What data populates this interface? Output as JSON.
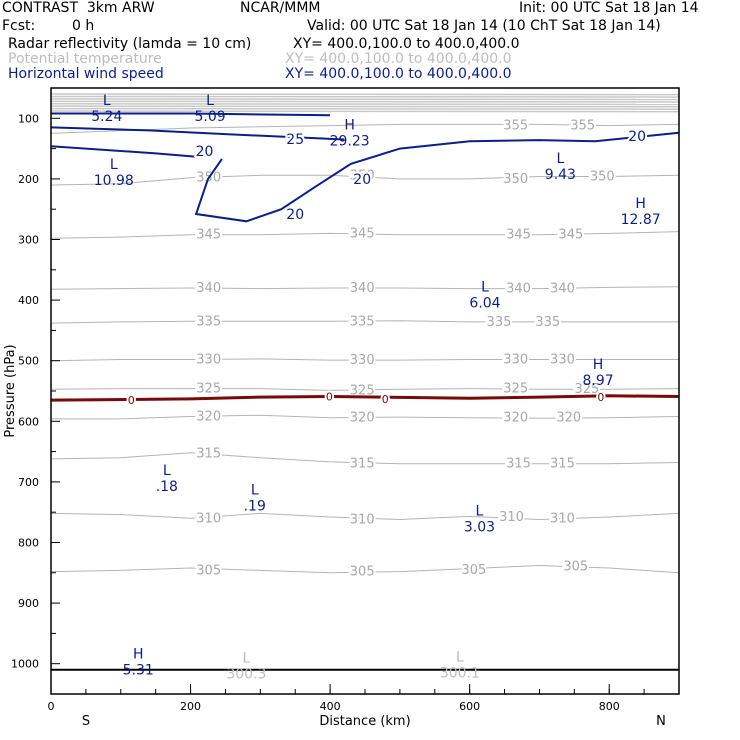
{
  "header": {
    "model": "CONTRAST  3km ARW",
    "institution": "NCAR/MMM",
    "init": "Init: 00 UTC Sat 18 Jan 14",
    "fcst_label": "Fcst:",
    "fcst_value": "0 h",
    "valid": "Valid: 00 UTC Sat 18 Jan 14 (10 ChT Sat 18 Jan 14)",
    "fields": [
      {
        "name": "Radar reflectivity (lamda = 10 cm)",
        "xy": "XY= 400.0,100.0 to 400.0,400.0",
        "color": "#000000"
      },
      {
        "name": "Potential temperature",
        "xy": "XY= 400.0,100.0 to 400.0,400.0",
        "color": "#bdbdbd"
      },
      {
        "name": "Horizontal wind speed",
        "xy": "XY= 400.0,100.0 to 400.0,400.0",
        "color": "#0a1f8f"
      }
    ]
  },
  "chart_data": {
    "type": "contour-cross-section",
    "xlabel": "Distance (km)",
    "ylabel": "Pressure (hPa)",
    "xlim": [
      0,
      900
    ],
    "ylim": [
      1050,
      50
    ],
    "x_ticks": [
      0,
      200,
      400,
      600,
      800
    ],
    "x_tick_labels": [
      "0",
      "200",
      "400",
      "600",
      "800"
    ],
    "y_ticks": [
      100,
      200,
      300,
      400,
      500,
      600,
      700,
      800,
      900,
      1000
    ],
    "y_tick_labels": [
      "100",
      "200",
      "300",
      "400",
      "500",
      "600",
      "700",
      "800",
      "900",
      "1000"
    ],
    "end_labels": {
      "left": "S",
      "right": "N"
    },
    "colors": {
      "theta": "#b4b4b4",
      "wind": "#0a1f8f",
      "freezing": "#7a0a0a",
      "ground": "#000000"
    },
    "ground_pressure": 1010,
    "theta_lines": [
      {
        "value": 305,
        "points": [
          [
            0,
            848
          ],
          [
            100,
            846
          ],
          [
            200,
            842
          ],
          [
            300,
            846
          ],
          [
            400,
            850
          ],
          [
            500,
            848
          ],
          [
            600,
            843
          ],
          [
            700,
            838
          ],
          [
            800,
            842
          ],
          [
            900,
            850
          ]
        ]
      },
      {
        "value": 310,
        "points": [
          [
            0,
            752
          ],
          [
            100,
            754
          ],
          [
            200,
            760
          ],
          [
            300,
            752
          ],
          [
            400,
            758
          ],
          [
            500,
            762
          ],
          [
            600,
            757
          ],
          [
            700,
            762
          ],
          [
            800,
            758
          ],
          [
            900,
            752
          ]
        ]
      },
      {
        "value": 315,
        "points": [
          [
            0,
            662
          ],
          [
            100,
            660
          ],
          [
            200,
            652
          ],
          [
            300,
            660
          ],
          [
            400,
            667
          ],
          [
            500,
            670
          ],
          [
            600,
            670
          ],
          [
            700,
            670
          ],
          [
            800,
            670
          ],
          [
            900,
            668
          ]
        ]
      },
      {
        "value": 320,
        "points": [
          [
            0,
            596
          ],
          [
            100,
            596
          ],
          [
            200,
            592
          ],
          [
            300,
            590
          ],
          [
            400,
            594
          ],
          [
            500,
            593
          ],
          [
            600,
            594
          ],
          [
            700,
            595
          ],
          [
            800,
            594
          ],
          [
            900,
            592
          ]
        ]
      },
      {
        "value": 325,
        "points": [
          [
            0,
            547
          ],
          [
            100,
            546
          ],
          [
            200,
            546
          ],
          [
            300,
            546
          ],
          [
            400,
            549
          ],
          [
            500,
            547
          ],
          [
            600,
            546
          ],
          [
            700,
            547
          ],
          [
            800,
            547
          ],
          [
            900,
            546
          ]
        ]
      },
      {
        "value": 330,
        "points": [
          [
            0,
            500
          ],
          [
            100,
            498
          ],
          [
            200,
            498
          ],
          [
            300,
            497
          ],
          [
            400,
            499
          ],
          [
            500,
            499
          ],
          [
            600,
            498
          ],
          [
            700,
            498
          ],
          [
            800,
            498
          ],
          [
            900,
            498
          ]
        ]
      },
      {
        "value": 335,
        "points": [
          [
            0,
            438
          ],
          [
            100,
            436
          ],
          [
            200,
            435
          ],
          [
            300,
            435
          ],
          [
            400,
            435
          ],
          [
            500,
            434
          ],
          [
            600,
            436
          ],
          [
            700,
            436
          ],
          [
            800,
            436
          ],
          [
            900,
            436
          ]
        ]
      },
      {
        "value": 340,
        "points": [
          [
            0,
            382
          ],
          [
            100,
            381
          ],
          [
            200,
            380
          ],
          [
            300,
            381
          ],
          [
            400,
            380
          ],
          [
            500,
            380
          ],
          [
            600,
            381
          ],
          [
            700,
            381
          ],
          [
            800,
            379
          ],
          [
            900,
            378
          ]
        ]
      },
      {
        "value": 345,
        "points": [
          [
            0,
            298
          ],
          [
            100,
            296
          ],
          [
            200,
            292
          ],
          [
            300,
            292
          ],
          [
            400,
            290
          ],
          [
            500,
            292
          ],
          [
            600,
            292
          ],
          [
            700,
            292
          ],
          [
            800,
            290
          ],
          [
            900,
            287
          ]
        ]
      },
      {
        "value": 350,
        "points": [
          [
            0,
            210
          ],
          [
            100,
            208
          ],
          [
            200,
            198
          ],
          [
            300,
            194
          ],
          [
            400,
            194
          ],
          [
            500,
            200
          ],
          [
            600,
            200
          ],
          [
            700,
            196
          ],
          [
            800,
            196
          ],
          [
            900,
            194
          ]
        ]
      },
      {
        "value": 355,
        "points": [
          [
            0,
            125
          ],
          [
            200,
            116
          ],
          [
            400,
            112
          ],
          [
            500,
            110
          ],
          [
            600,
            110
          ],
          [
            700,
            110
          ],
          [
            800,
            112
          ],
          [
            900,
            110
          ]
        ]
      }
    ],
    "theta_label_list": [
      {
        "text": "305",
        "at": [
          226,
          846
        ]
      },
      {
        "text": "305",
        "at": [
          446,
          848
        ]
      },
      {
        "text": "305",
        "at": [
          606,
          845
        ]
      },
      {
        "text": "305",
        "at": [
          752,
          840
        ]
      },
      {
        "text": "310",
        "at": [
          226,
          760
        ]
      },
      {
        "text": "310",
        "at": [
          446,
          762
        ]
      },
      {
        "text": "310",
        "at": [
          660,
          758
        ]
      },
      {
        "text": "310",
        "at": [
          733,
          760
        ]
      },
      {
        "text": "315",
        "at": [
          226,
          653
        ]
      },
      {
        "text": "315",
        "at": [
          446,
          670
        ]
      },
      {
        "text": "315",
        "at": [
          670,
          670
        ]
      },
      {
        "text": "315",
        "at": [
          733,
          670
        ]
      },
      {
        "text": "320",
        "at": [
          446,
          594
        ]
      },
      {
        "text": "320",
        "at": [
          666,
          594
        ]
      },
      {
        "text": "320",
        "at": [
          742,
          594
        ]
      },
      {
        "text": "320",
        "at": [
          226,
          592
        ]
      },
      {
        "text": "325",
        "at": [
          226,
          546
        ]
      },
      {
        "text": "325",
        "at": [
          446,
          549
        ]
      },
      {
        "text": "325",
        "at": [
          666,
          546
        ]
      },
      {
        "text": "325",
        "at": [
          768,
          547
        ]
      },
      {
        "text": "330",
        "at": [
          226,
          498
        ]
      },
      {
        "text": "330",
        "at": [
          446,
          499
        ]
      },
      {
        "text": "330",
        "at": [
          666,
          498
        ]
      },
      {
        "text": "330",
        "at": [
          733,
          498
        ]
      },
      {
        "text": "335",
        "at": [
          226,
          435
        ]
      },
      {
        "text": "335",
        "at": [
          446,
          435
        ]
      },
      {
        "text": "335",
        "at": [
          642,
          436
        ]
      },
      {
        "text": "335",
        "at": [
          712,
          436
        ]
      },
      {
        "text": "340",
        "at": [
          226,
          380
        ]
      },
      {
        "text": "340",
        "at": [
          446,
          380
        ]
      },
      {
        "text": "340",
        "at": [
          670,
          381
        ]
      },
      {
        "text": "340",
        "at": [
          733,
          381
        ]
      },
      {
        "text": "345",
        "at": [
          226,
          292
        ]
      },
      {
        "text": "345",
        "at": [
          446,
          290
        ]
      },
      {
        "text": "345",
        "at": [
          670,
          292
        ]
      },
      {
        "text": "345",
        "at": [
          745,
          292
        ]
      },
      {
        "text": "350",
        "at": [
          226,
          198
        ]
      },
      {
        "text": "350",
        "at": [
          446,
          194
        ]
      },
      {
        "text": "350",
        "at": [
          666,
          200
        ]
      },
      {
        "text": "350",
        "at": [
          790,
          196
        ]
      },
      {
        "text": "355",
        "at": [
          666,
          112
        ]
      },
      {
        "text": "355",
        "at": [
          762,
          112
        ]
      }
    ],
    "wind_contours": [
      {
        "value": 20,
        "points": [
          [
            0,
            146
          ],
          [
            150,
            158
          ],
          [
            215,
            164
          ]
        ]
      },
      {
        "value": 20,
        "points": [
          [
            245,
            167
          ],
          [
            225,
            200
          ],
          [
            208,
            258
          ],
          [
            280,
            270
          ],
          [
            330,
            250
          ],
          [
            380,
            212
          ],
          [
            430,
            175
          ],
          [
            500,
            150
          ],
          [
            600,
            138
          ],
          [
            700,
            136
          ],
          [
            780,
            138
          ],
          [
            900,
            124
          ]
        ]
      },
      {
        "value": 25,
        "points": [
          [
            0,
            115
          ],
          [
            140,
            120
          ],
          [
            250,
            126
          ],
          [
            420,
            135
          ]
        ]
      },
      {
        "value": 30,
        "points": [
          [
            0,
            92
          ],
          [
            200,
            92
          ],
          [
            400,
            95
          ]
        ]
      }
    ],
    "wind_label_list": [
      {
        "text": "20",
        "at": [
          220,
          154
        ]
      },
      {
        "text": "20",
        "at": [
          446,
          200
        ]
      },
      {
        "text": "20",
        "at": [
          350,
          258
        ]
      },
      {
        "text": "20",
        "at": [
          840,
          129
        ]
      },
      {
        "text": "25",
        "at": [
          350,
          134
        ]
      }
    ],
    "jet_top_levels": [
      60,
      64,
      68,
      72,
      76,
      80,
      84,
      88
    ],
    "freezing_level": {
      "value": 0,
      "points": [
        [
          0,
          565
        ],
        [
          200,
          563
        ],
        [
          300,
          560
        ],
        [
          400,
          559
        ],
        [
          600,
          562
        ],
        [
          700,
          560
        ],
        [
          800,
          558
        ],
        [
          900,
          559
        ]
      ],
      "marks": [
        [
          115,
          565
        ],
        [
          399,
          559
        ],
        [
          479,
          563
        ],
        [
          788,
          560
        ]
      ],
      "mark_text": "0"
    },
    "extrema": [
      {
        "kind": "L",
        "value": "5.24",
        "at": [
          80,
          85
        ],
        "color": "#0a1f8f"
      },
      {
        "kind": "L",
        "value": "5.09",
        "at": [
          228,
          85
        ],
        "color": "#0a1f8f"
      },
      {
        "kind": "H",
        "value": "29.23",
        "at": [
          428,
          125
        ],
        "color": "#0a1f8f"
      },
      {
        "kind": "L",
        "value": "10.98",
        "at": [
          90,
          190
        ],
        "color": "#0a1f8f"
      },
      {
        "kind": "L",
        "value": "9.43",
        "at": [
          730,
          180
        ],
        "color": "#0a1f8f"
      },
      {
        "kind": "H",
        "value": "12.87",
        "at": [
          845,
          255
        ],
        "color": "#0a1f8f"
      },
      {
        "kind": "L",
        "value": "6.04",
        "at": [
          622,
          392
        ],
        "color": "#0a1f8f"
      },
      {
        "kind": "H",
        "value": "8.97",
        "at": [
          784,
          520
        ],
        "color": "#0a1f8f"
      },
      {
        "kind": "L",
        "value": ".18",
        "at": [
          166,
          695
        ],
        "color": "#0a1f8f"
      },
      {
        "kind": "L",
        "value": ".19",
        "at": [
          292,
          727
        ],
        "color": "#0a1f8f"
      },
      {
        "kind": "L",
        "value": "3.03",
        "at": [
          614,
          762
        ],
        "color": "#0a1f8f"
      },
      {
        "kind": "H",
        "value": "5.31",
        "at": [
          125,
          998
        ],
        "color": "#0a1f8f"
      },
      {
        "kind": "L",
        "value": "300.3",
        "at": [
          280,
          1005
        ],
        "color": "#bdbdbd"
      },
      {
        "kind": "L",
        "value": "300.1",
        "at": [
          586,
          1003
        ],
        "color": "#bdbdbd"
      }
    ]
  }
}
